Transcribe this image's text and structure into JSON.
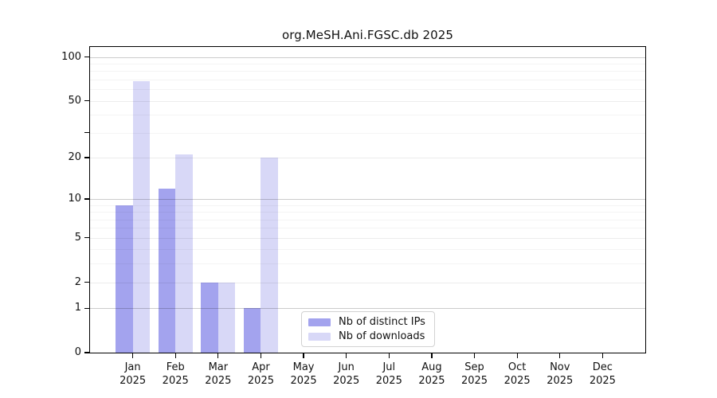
{
  "figure": {
    "background": "#ffffff"
  },
  "chart_data": {
    "type": "bar",
    "title": "org.MeSH.Ani.FGSC.db 2025",
    "categories": [
      "Jan",
      "Feb",
      "Mar",
      "Apr",
      "May",
      "Jun",
      "Jul",
      "Aug",
      "Sep",
      "Oct",
      "Nov",
      "Dec"
    ],
    "year_label": "2025",
    "series": [
      {
        "name": "Nb of distinct IPs",
        "color": "#a3a3ee",
        "values": [
          9,
          12,
          2,
          1,
          0,
          0,
          0,
          0,
          0,
          0,
          0,
          0
        ]
      },
      {
        "name": "Nb of downloads",
        "color": "#d8d8f7",
        "values": [
          68,
          21,
          2,
          20,
          0,
          0,
          0,
          0,
          0,
          0,
          0,
          0
        ]
      }
    ],
    "y_scale": "log10(1+v)",
    "y_axis": {
      "min": 0,
      "max": 117,
      "ticks_labeled": [
        100,
        50,
        20,
        10,
        5,
        2,
        1,
        0
      ],
      "ticks_unlabeled": [
        30
      ]
    },
    "x_axis": {
      "tick_label_format": "month + year, two lines"
    },
    "gridlines": {
      "orientation": "horizontal",
      "strong": [
        1,
        10,
        100
      ],
      "light": [
        2,
        5,
        20,
        50
      ],
      "minor": [
        3,
        4,
        6,
        7,
        8,
        9,
        30,
        40,
        60,
        70,
        80,
        90
      ]
    },
    "legend": {
      "position": "inside-bottom-center",
      "entries": [
        "Nb of distinct IPs",
        "Nb of downloads"
      ]
    }
  }
}
